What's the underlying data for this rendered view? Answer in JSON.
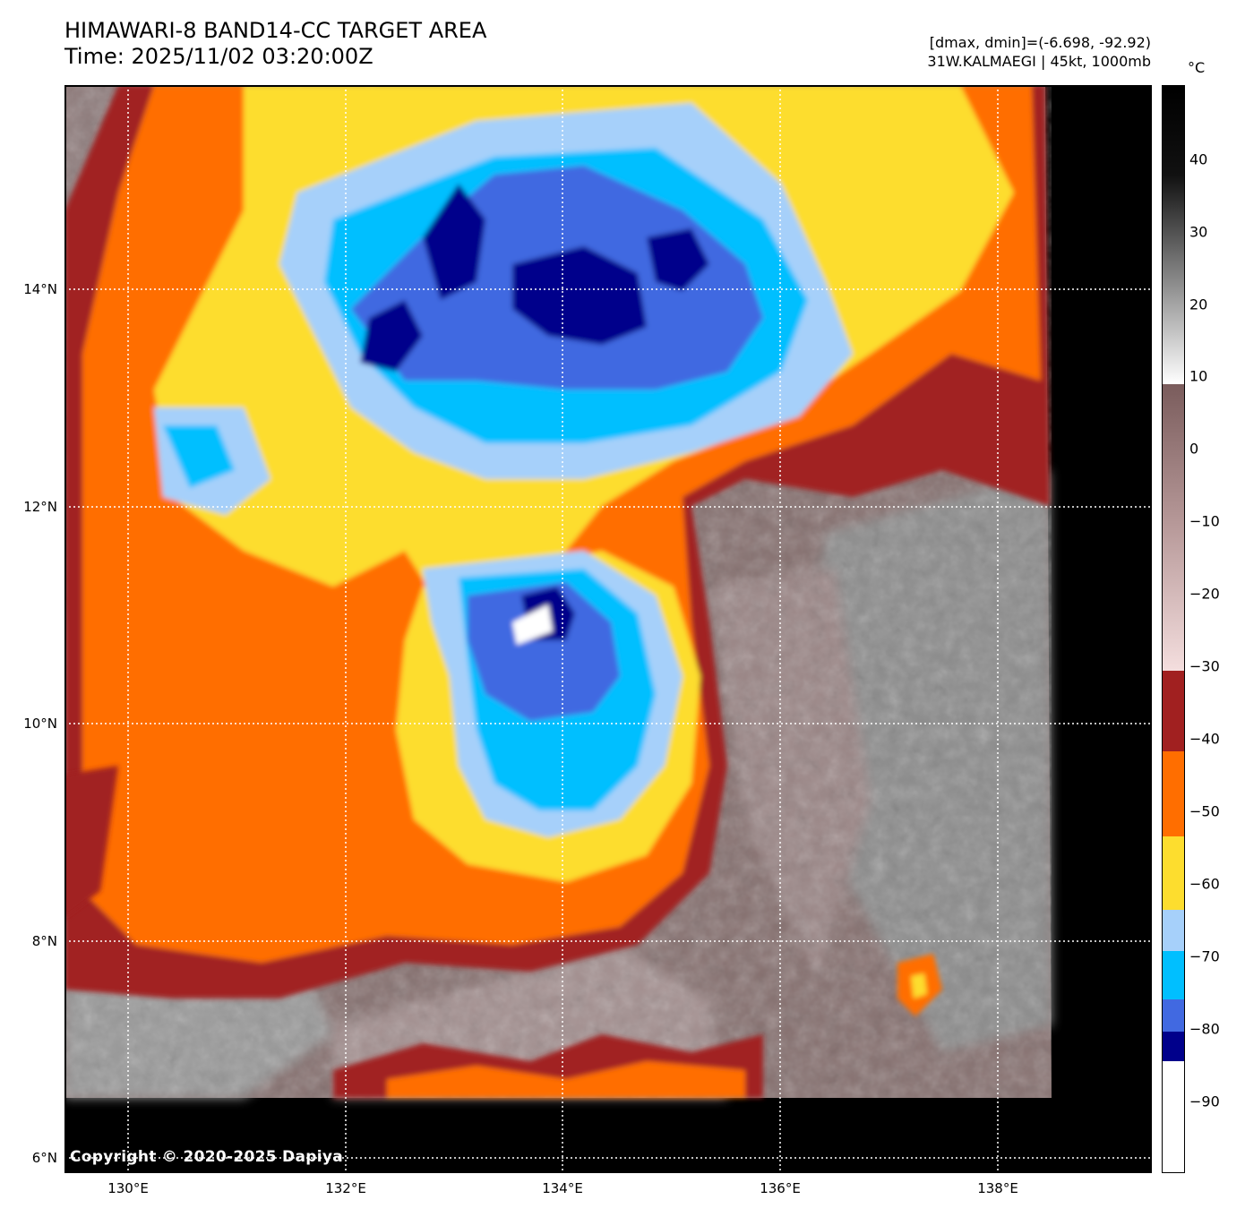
{
  "header": {
    "title_line1": "HIMAWARI-8 BAND14-CC TARGET AREA",
    "title_line2": "Time: 2025/11/02 03:20:00Z",
    "info_line1": "[dmax, dmin]=(-6.698, -92.92)",
    "info_line2": "31W.KALMAEGI | 45kt, 1000mb"
  },
  "copyright": "Copyright © 2020-2025 Dapiya",
  "axes": {
    "lat_labels": [
      "14°N",
      "12°N",
      "10°N",
      "8°N",
      "6°N"
    ],
    "lon_labels": [
      "130°E",
      "132°E",
      "134°E",
      "136°E",
      "138°E"
    ]
  },
  "colorbar": {
    "unit": "°C",
    "ticks": [
      "40",
      "30",
      "20",
      "10",
      "0",
      "−10",
      "−20",
      "−30",
      "−40",
      "−50",
      "−60",
      "−70",
      "−80",
      "−90"
    ]
  },
  "palette": {
    "deep_cold": "#00008b",
    "royal_blue": "#4169e1",
    "sky_blue": "#00bfff",
    "pale_blue": "#a6d0fa",
    "yellow": "#fddd2e",
    "orange": "#ff6e00",
    "dark_red": "#a12020",
    "brown": "#7a5c5c",
    "warm_gray": "#9a9a9a",
    "no_data": "#000000"
  }
}
